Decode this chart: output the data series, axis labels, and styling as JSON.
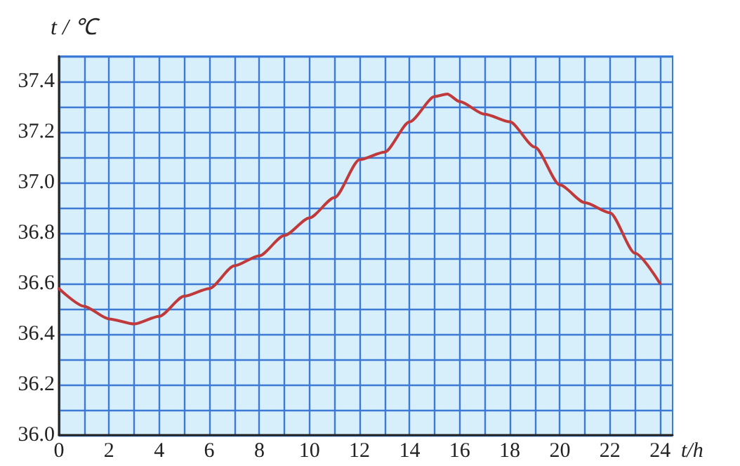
{
  "chart_data": {
    "type": "line",
    "xlabel": "t/h",
    "ylabel": "t / ℃",
    "x": [
      0,
      1,
      2,
      3,
      4,
      5,
      6,
      7,
      8,
      9,
      10,
      11,
      12,
      13,
      14,
      15,
      15.5,
      16,
      17,
      18,
      19,
      20,
      21,
      22,
      23,
      24
    ],
    "series": [
      {
        "color": "#c0393b",
        "values": [
          36.58,
          36.51,
          36.46,
          36.44,
          36.47,
          36.55,
          36.58,
          36.67,
          36.71,
          36.79,
          36.86,
          36.94,
          37.09,
          37.12,
          37.24,
          37.34,
          37.35,
          37.32,
          37.27,
          37.24,
          37.14,
          36.99,
          36.92,
          36.88,
          36.72,
          36.6
        ]
      }
    ],
    "xlim": [
      0,
      24.5
    ],
    "xticks": [
      0,
      {
        "value": 1,
        "label": null
      },
      2,
      {
        "value": 3,
        "label": null
      },
      4,
      {
        "value": 5,
        "label": null
      },
      6,
      {
        "value": 7,
        "label": null
      },
      8,
      {
        "value": 9,
        "label": null
      },
      10,
      {
        "value": 11,
        "label": null
      },
      12,
      {
        "value": 13,
        "label": null
      },
      14,
      {
        "value": 15,
        "label": null
      },
      16,
      {
        "value": 17,
        "label": null
      },
      18,
      {
        "value": 19,
        "label": null
      },
      20,
      {
        "value": 21,
        "label": null
      },
      22,
      {
        "value": 23,
        "label": null
      },
      24
    ],
    "ylim": [
      36.0,
      37.5
    ],
    "yticks": [
      {
        "value": 36.0,
        "label": "36.0"
      },
      {
        "value": 36.1,
        "label": null
      },
      {
        "value": 36.2,
        "label": "36.2"
      },
      {
        "value": 36.3,
        "label": null
      },
      {
        "value": 36.4,
        "label": "36.4"
      },
      {
        "value": 36.5,
        "label": null
      },
      {
        "value": 36.6,
        "label": "36.6"
      },
      {
        "value": 36.7,
        "label": null
      },
      {
        "value": 36.8,
        "label": "36.8"
      },
      {
        "value": 36.9,
        "label": null
      },
      {
        "value": 37.0,
        "label": "37.0"
      },
      {
        "value": 37.1,
        "label": null
      },
      {
        "value": 37.2,
        "label": "37.2"
      },
      {
        "value": 37.3,
        "label": null
      },
      {
        "value": 37.4,
        "label": "37.4"
      },
      {
        "value": 37.5,
        "label": null
      }
    ],
    "grid": true,
    "marker": "none",
    "line_style": "solid"
  }
}
